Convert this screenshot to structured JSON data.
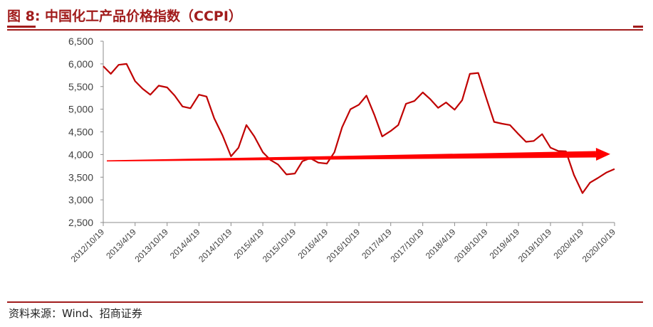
{
  "title": "图 8:  中国化工产品价格指数（CCPI）",
  "source": "资料来源：Wind、招商证券",
  "colors": {
    "accent": "#a11c1c",
    "series": "#c00000",
    "trend": "#ff0000"
  },
  "chart_data": {
    "type": "line",
    "title": "中国化工产品价格指数（CCPI）",
    "xlabel": "",
    "ylabel": "",
    "ylim": [
      2500,
      6500
    ],
    "yticks": [
      "2,500",
      "3,000",
      "3,500",
      "4,000",
      "4,500",
      "5,000",
      "5,500",
      "6,000",
      "6,500"
    ],
    "xticks": [
      "2012/10/19",
      "2013/4/19",
      "2013/10/19",
      "2014/4/19",
      "2014/10/19",
      "2015/4/19",
      "2015/10/19",
      "2016/4/19",
      "2016/10/19",
      "2017/4/19",
      "2017/10/19",
      "2018/4/19",
      "2018/10/19",
      "2019/4/19",
      "2019/10/19",
      "2020/4/19",
      "2020/10/19"
    ],
    "grid": false,
    "legend": "none",
    "series": [
      {
        "x": [
          "2012/10/19",
          "2012/12/1",
          "2013/1/15",
          "2013/3/1",
          "2013/4/19",
          "2013/6/1",
          "2013/7/15",
          "2013/9/1",
          "2013/10/19",
          "2013/12/1",
          "2014/1/15",
          "2014/3/1",
          "2014/4/19",
          "2014/6/1",
          "2014/7/15",
          "2014/9/1",
          "2014/10/19",
          "2014/12/1",
          "2015/1/15",
          "2015/3/1",
          "2015/4/19",
          "2015/6/1",
          "2015/7/15",
          "2015/9/1",
          "2015/10/19",
          "2015/12/1",
          "2016/1/15",
          "2016/3/1",
          "2016/4/19",
          "2016/6/1",
          "2016/7/15",
          "2016/9/1",
          "2016/10/19",
          "2016/12/1",
          "2017/1/15",
          "2017/3/1",
          "2017/4/19",
          "2017/6/1",
          "2017/7/15",
          "2017/9/1",
          "2017/10/19",
          "2017/12/1",
          "2018/1/15",
          "2018/3/1",
          "2018/4/19",
          "2018/6/1",
          "2018/7/15",
          "2018/9/1",
          "2018/10/19",
          "2018/12/1",
          "2019/1/15",
          "2019/3/1",
          "2019/4/19",
          "2019/6/1",
          "2019/7/15",
          "2019/9/1",
          "2019/10/19",
          "2019/12/1",
          "2020/1/15",
          "2020/3/1",
          "2020/4/19",
          "2020/6/1",
          "2020/7/15",
          "2020/9/1",
          "2020/10/19"
        ],
        "values": [
          5950,
          5780,
          5980,
          6000,
          5620,
          5450,
          5320,
          5520,
          5480,
          5300,
          5060,
          5020,
          5320,
          5280,
          4800,
          4420,
          3960,
          4150,
          4650,
          4400,
          4050,
          3880,
          3780,
          3560,
          3580,
          3850,
          3920,
          3820,
          3800,
          4050,
          4600,
          5000,
          5100,
          5300,
          4880,
          4400,
          4520,
          4650,
          5120,
          5180,
          5370,
          5220,
          5030,
          5150,
          4990,
          5200,
          5780,
          5800,
          5220,
          4720,
          4680,
          4650,
          4450,
          4280,
          4300,
          4450,
          4150,
          4080,
          4070,
          3550,
          3150,
          3380,
          3480,
          3600,
          3680
        ]
      }
    ],
    "annotations": [
      {
        "type": "trend-arrow",
        "from": {
          "x": "2012/10/19",
          "y": 3860
        },
        "to": {
          "x": "2020/10/19",
          "y": 4010
        }
      }
    ]
  }
}
